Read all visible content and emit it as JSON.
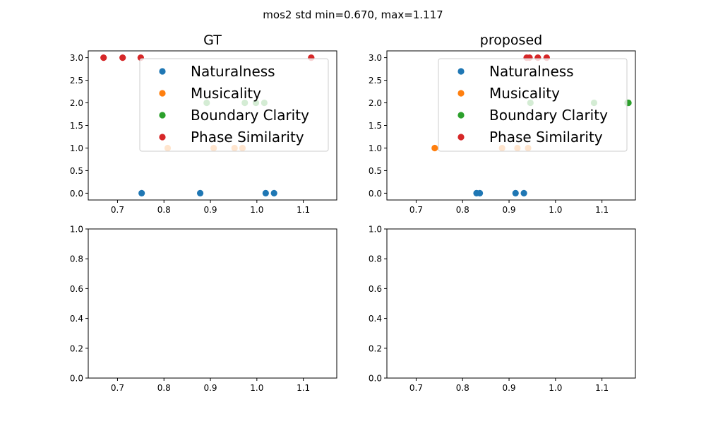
{
  "suptitle": "mos2 std min=0.670, max=1.117",
  "colors": {
    "Naturalness": "#1f77b4",
    "Musicality": "#ff7f0e",
    "Boundary Clarity": "#2ca02c",
    "Phase Similarity": "#d62728"
  },
  "chart_data": [
    {
      "type": "scatter",
      "title": "GT",
      "xlim": [
        0.637,
        1.172
      ],
      "ylim": [
        -0.15,
        3.15
      ],
      "xticks": [
        0.7,
        0.8,
        0.9,
        1.0,
        1.1
      ],
      "xtick_labels": [
        "0.7",
        "0.8",
        "0.9",
        "1.0",
        "1.1"
      ],
      "yticks": [
        0.0,
        0.5,
        1.0,
        1.5,
        2.0,
        2.5,
        3.0
      ],
      "ytick_labels": [
        "0.0",
        "0.5",
        "1.0",
        "1.5",
        "2.0",
        "2.5",
        "3.0"
      ],
      "legend": {
        "placement": "upper right",
        "entries": [
          "Naturalness",
          "Musicality",
          "Boundary Clarity",
          "Phase Similarity"
        ]
      },
      "series": [
        {
          "name": "Naturalness",
          "x": [
            0.752,
            0.878,
            1.019,
            1.037
          ],
          "y": [
            0,
            0,
            0,
            0
          ]
        },
        {
          "name": "Musicality",
          "x": [
            0.808,
            0.907,
            0.952,
            0.969
          ],
          "y": [
            1,
            1,
            1,
            1
          ]
        },
        {
          "name": "Boundary Clarity",
          "x": [
            0.892,
            0.974,
            0.998,
            1.016
          ],
          "y": [
            2,
            2,
            2,
            2
          ]
        },
        {
          "name": "Phase Similarity",
          "x": [
            0.67,
            0.711,
            0.75,
            1.117
          ],
          "y": [
            3,
            3,
            3,
            3
          ]
        }
      ]
    },
    {
      "type": "scatter",
      "title": "proposed",
      "xlim": [
        0.637,
        1.172
      ],
      "ylim": [
        -0.15,
        3.15
      ],
      "xticks": [
        0.7,
        0.8,
        0.9,
        1.0,
        1.1
      ],
      "xtick_labels": [
        "0.7",
        "0.8",
        "0.9",
        "1.0",
        "1.1"
      ],
      "yticks": [
        0.0,
        0.5,
        1.0,
        1.5,
        2.0,
        2.5,
        3.0
      ],
      "ytick_labels": [
        "0.0",
        "0.5",
        "1.0",
        "1.5",
        "2.0",
        "2.5",
        "3.0"
      ],
      "legend": {
        "placement": "upper right",
        "entries": [
          "Naturalness",
          "Musicality",
          "Boundary Clarity",
          "Phase Similarity"
        ]
      },
      "series": [
        {
          "name": "Naturalness",
          "x": [
            0.83,
            0.837,
            0.914,
            0.932
          ],
          "y": [
            0,
            0,
            0,
            0
          ]
        },
        {
          "name": "Musicality",
          "x": [
            0.74,
            0.885,
            0.918,
            0.941
          ],
          "y": [
            1,
            1,
            1,
            1
          ]
        },
        {
          "name": "Boundary Clarity",
          "x": [
            0.946,
            1.083,
            1.155,
            1.157
          ],
          "y": [
            2,
            2,
            2,
            2
          ]
        },
        {
          "name": "Phase Similarity",
          "x": [
            0.938,
            0.944,
            0.962,
            0.981
          ],
          "y": [
            3,
            3,
            3,
            3
          ]
        }
      ]
    },
    {
      "type": "scatter",
      "title": "",
      "xlim": [
        0.637,
        1.172
      ],
      "ylim": [
        0,
        1
      ],
      "xticks": [
        0.7,
        0.8,
        0.9,
        1.0,
        1.1
      ],
      "xtick_labels": [
        "0.7",
        "0.8",
        "0.9",
        "1.0",
        "1.1"
      ],
      "yticks": [
        0.0,
        0.2,
        0.4,
        0.6,
        0.8,
        1.0
      ],
      "ytick_labels": [
        "0.0",
        "0.2",
        "0.4",
        "0.6",
        "0.8",
        "1.0"
      ],
      "series": []
    },
    {
      "type": "scatter",
      "title": "",
      "xlim": [
        0.637,
        1.172
      ],
      "ylim": [
        0,
        1
      ],
      "xticks": [
        0.7,
        0.8,
        0.9,
        1.0,
        1.1
      ],
      "xtick_labels": [
        "0.7",
        "0.8",
        "0.9",
        "1.0",
        "1.1"
      ],
      "yticks": [
        0.0,
        0.2,
        0.4,
        0.6,
        0.8,
        1.0
      ],
      "ytick_labels": [
        "0.0",
        "0.2",
        "0.4",
        "0.6",
        "0.8",
        "1.0"
      ],
      "series": []
    }
  ]
}
